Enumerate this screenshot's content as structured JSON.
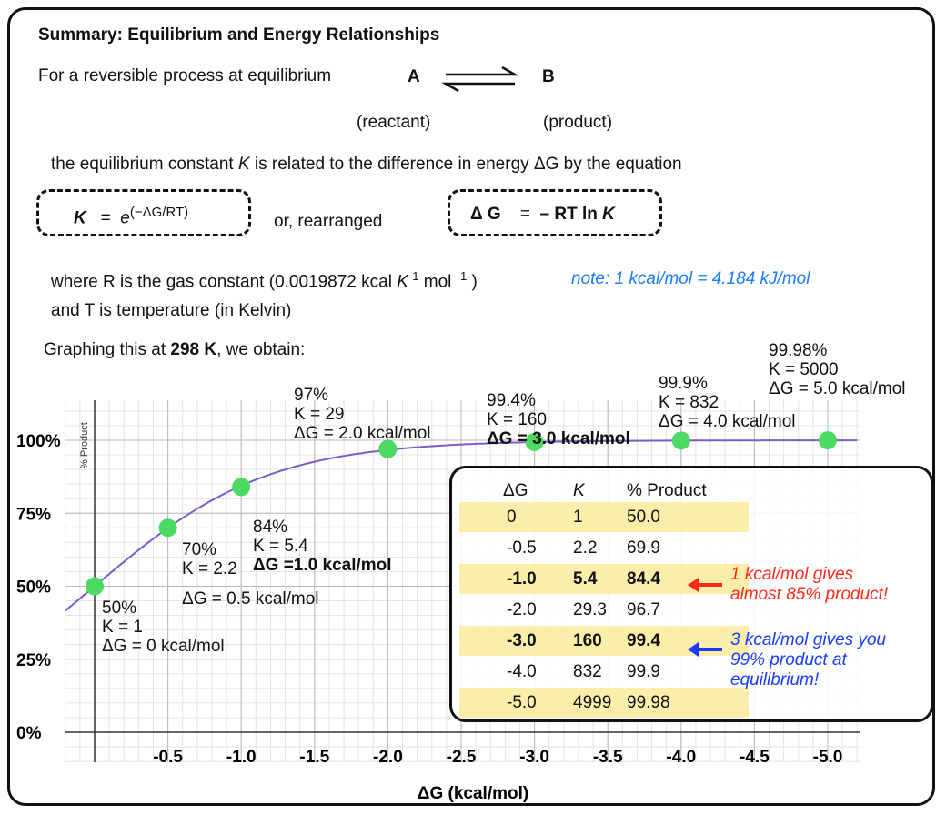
{
  "title": "Summary: Equilibrium and Energy Relationships",
  "intro": "For a reversible process at equilibrium",
  "reactant": "A",
  "product": "B",
  "reactant_label": "(reactant)",
  "product_label": "(product)",
  "relation_text": {
    "pre": "the equilibrium constant ",
    "K": "K",
    "post": " is related to the difference in energy ΔG by the equation"
  },
  "eq1": {
    "K": "K",
    "eq": "=",
    "e": "e",
    "exp": "(−ΔG/RT)"
  },
  "or_text": "or, rearranged",
  "eq2": {
    "lhs": "Δ G",
    "eq": "=",
    "rhs": "– RT  ln ",
    "K": "K"
  },
  "where_text": {
    "pre": "where R is the gas constant (0.0019872  kcal  ",
    "K": "K",
    "sup1": "-1",
    "mid": " mol ",
    "sup2": "-1",
    "post": " )"
  },
  "note": "note: 1 kcal/mol = 4.184 kJ/mol",
  "temp_text": "and T is temperature (in Kelvin)",
  "graph_text": {
    "pre": "Graphing this at ",
    "bold": "298 K",
    "post": ", we obtain:"
  },
  "colors": {
    "curve": "#7b5cc8",
    "points": "#4cd964",
    "highlight": "#fbeeab",
    "red_note": "#ff2a1a",
    "blue_note": "#1a3cff",
    "note_blue": "#1a7cff"
  },
  "chart_data": {
    "type": "line",
    "xlabel": "ΔG (kcal/mol)",
    "ylabel": "% Product",
    "xlim": [
      0.2,
      -5.2
    ],
    "ylim": [
      0,
      100
    ],
    "x_ticks": [
      "-0.5",
      "-1.0",
      "-1.5",
      "-2.0",
      "-2.5",
      "-3.0",
      "-3.5",
      "-4.0",
      "-4.5",
      "-5.0"
    ],
    "x_tick_values": [
      -0.5,
      -1.0,
      -1.5,
      -2.0,
      -2.5,
      -3.0,
      -3.5,
      -4.0,
      -4.5,
      -5.0
    ],
    "y_ticks": [
      "0%",
      "25%",
      "50%",
      "75%",
      "100%"
    ],
    "y_tick_values": [
      0,
      25,
      50,
      75,
      100
    ],
    "grid": true,
    "points": {
      "x": [
        0,
        -0.5,
        -1.0,
        -2.0,
        -3.0,
        -4.0,
        -5.0
      ],
      "y": [
        50,
        70,
        84,
        97,
        99.4,
        99.9,
        99.98
      ]
    },
    "annotations": [
      {
        "lines": [
          "50%",
          "K = 1",
          "ΔG = 0 kcal/mol"
        ]
      },
      {
        "lines": [
          "70%",
          "K = 2.2",
          "ΔG = 0.5 kcal/mol"
        ]
      },
      {
        "lines": [
          "84%",
          "K = 5.4",
          "ΔG =1.0 kcal/mol"
        ]
      },
      {
        "lines": [
          "97%",
          "K = 29",
          "ΔG = 2.0 kcal/mol"
        ]
      },
      {
        "lines": [
          "99.4%",
          "K = 160",
          "ΔG = 3.0 kcal/mol"
        ]
      },
      {
        "lines": [
          "99.9%",
          "K = 832",
          "ΔG = 4.0 kcal/mol"
        ]
      },
      {
        "lines": [
          "99.98%",
          "K = 5000",
          "ΔG = 5.0 kcal/mol"
        ]
      }
    ]
  },
  "table": {
    "headers": [
      "ΔG",
      "K",
      "% Product"
    ],
    "rows": [
      [
        "0",
        "1",
        "50.0"
      ],
      [
        "-0.5",
        "2.2",
        "69.9"
      ],
      [
        "-1.0",
        "5.4",
        "84.4"
      ],
      [
        "-2.0",
        "29.3",
        "96.7"
      ],
      [
        "-3.0",
        "160",
        "99.4"
      ],
      [
        "-4.0",
        "832",
        "99.9"
      ],
      [
        "-5.0",
        "4999",
        "99.98"
      ]
    ],
    "note_red": [
      "1 kcal/mol gives",
      "almost 85% product!"
    ],
    "note_blue": [
      "3 kcal/mol gives you",
      "99% product at",
      "equilibrium!"
    ]
  }
}
